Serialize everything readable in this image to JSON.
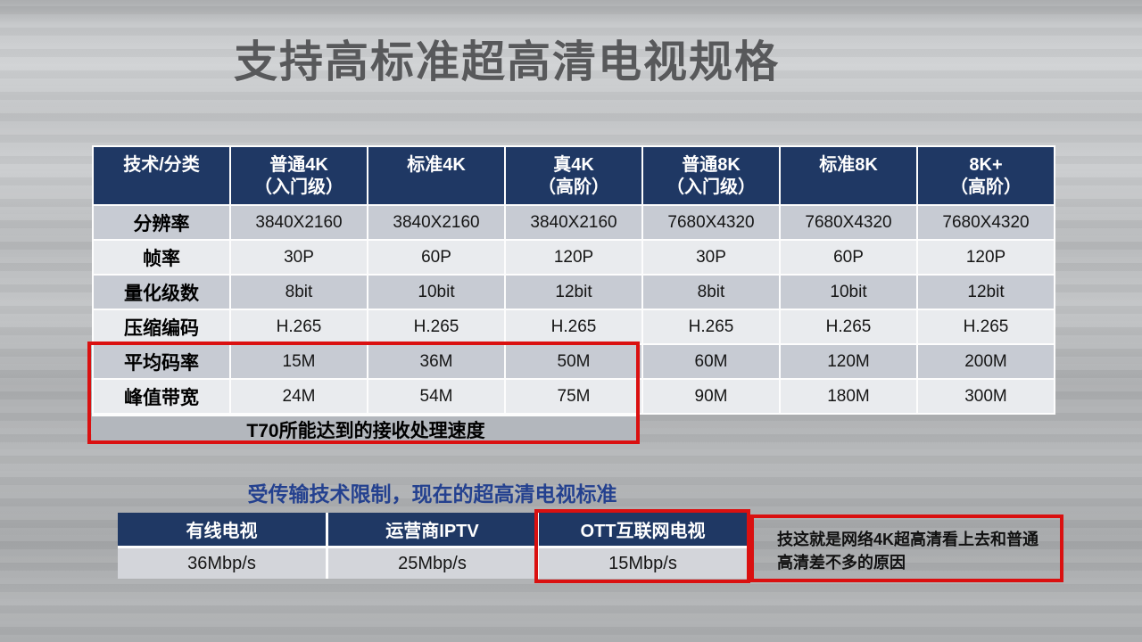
{
  "title": "支持高标准超高清电视规格",
  "main_table": {
    "corner_label": "技术/分类",
    "columns": [
      {
        "line1": "普通4K",
        "line2": "（入门级）"
      },
      {
        "line1": "标准4K",
        "line2": ""
      },
      {
        "line1": "真4K",
        "line2": "（高阶）"
      },
      {
        "line1": "普通8K",
        "line2": "（入门级）"
      },
      {
        "line1": "标准8K",
        "line2": ""
      },
      {
        "line1": "8K+",
        "line2": "（高阶）"
      }
    ],
    "rows": [
      {
        "label": "分辨率",
        "values": [
          "3840X2160",
          "3840X2160",
          "3840X2160",
          "7680X4320",
          "7680X4320",
          "7680X4320"
        ]
      },
      {
        "label": "帧率",
        "values": [
          "30P",
          "60P",
          "120P",
          "30P",
          "60P",
          "120P"
        ]
      },
      {
        "label": "量化级数",
        "values": [
          "8bit",
          "10bit",
          "12bit",
          "8bit",
          "10bit",
          "12bit"
        ]
      },
      {
        "label": "压缩编码",
        "values": [
          "H.265",
          "H.265",
          "H.265",
          "H.265",
          "H.265",
          "H.265"
        ]
      },
      {
        "label": "平均码率",
        "values": [
          "15M",
          "36M",
          "50M",
          "60M",
          "120M",
          "200M"
        ]
      },
      {
        "label": "峰值带宽",
        "values": [
          "24M",
          "54M",
          "75M",
          "90M",
          "180M",
          "300M"
        ]
      }
    ],
    "footer_note": "T70所能达到的接收处理速度"
  },
  "subtitle": "受传输技术限制，现在的超高清电视标准",
  "bandwidth_table": {
    "columns": [
      "有线电视",
      "运营商IPTV",
      "OTT互联网电视"
    ],
    "values": [
      "36Mbp/s",
      "25Mbp/s",
      "15Mbp/s"
    ]
  },
  "annotation": "技这就是网络4K超高清看上去和普通高清差不多的原因",
  "colors": {
    "header_navy": "#1f3864",
    "row_dark": "#c7cbd3",
    "row_light": "#e9ebee",
    "footer_gray": "#b3b7bd",
    "highlight_red": "#da1010",
    "subtitle_blue": "#24418f",
    "title_gray": "#58595b"
  }
}
